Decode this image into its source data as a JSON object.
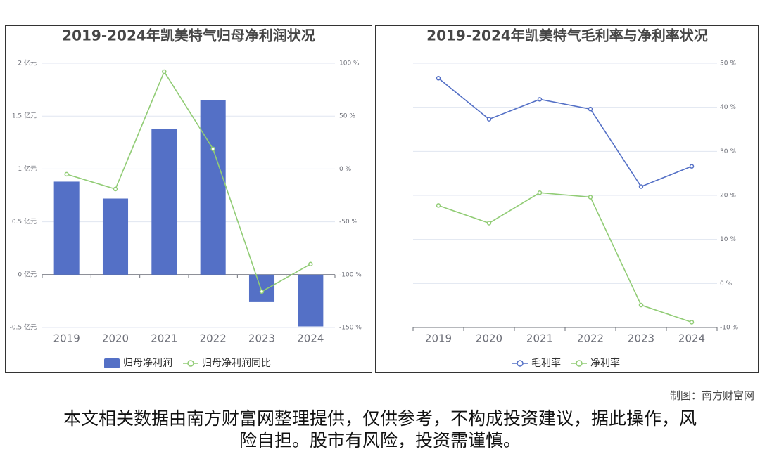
{
  "chart_data": [
    {
      "type": "bar_line",
      "title": "2019-2024年凯美特气归母净利润状况",
      "categories": [
        "2019",
        "2020",
        "2021",
        "2022",
        "2023",
        "2024"
      ],
      "series": [
        {
          "name": "归母净利润",
          "type": "bar",
          "color": "#5470c6",
          "values": [
            0.88,
            0.72,
            1.38,
            1.65,
            -0.26,
            -0.49
          ]
        },
        {
          "name": "归母净利润同比",
          "type": "line",
          "axis": "y2",
          "color": "#91cc75",
          "values": [
            -5,
            -19,
            92,
            19,
            -116,
            -90
          ]
        }
      ],
      "ylim": [
        -0.5,
        2
      ],
      "yticks": [
        {
          "value": -0.5,
          "label": "-0.5 亿元"
        },
        {
          "value": 0,
          "label": "0 亿元"
        },
        {
          "value": 0.5,
          "label": "0.5 亿元"
        },
        {
          "value": 1,
          "label": "1 亿元"
        },
        {
          "value": 1.5,
          "label": "1.5 亿元"
        },
        {
          "value": 2,
          "label": "2 亿元"
        }
      ],
      "y2lim": [
        -150,
        100
      ],
      "y2ticks": [
        {
          "value": -150,
          "label": "-150 %"
        },
        {
          "value": -100,
          "label": "-100 %"
        },
        {
          "value": -50,
          "label": "-50 %"
        },
        {
          "value": 0,
          "label": "0 %"
        },
        {
          "value": 50,
          "label": "50 %"
        },
        {
          "value": 100,
          "label": "100 %"
        }
      ],
      "grid": true
    },
    {
      "type": "line",
      "title": "2019-2024年凯美特气毛利率与净利率状况",
      "categories": [
        "2019",
        "2020",
        "2021",
        "2022",
        "2023",
        "2024"
      ],
      "series": [
        {
          "name": "毛利率",
          "type": "line",
          "color": "#5470c6",
          "values": [
            46.6,
            37.3,
            41.8,
            39.6,
            22.0,
            26.6
          ]
        },
        {
          "name": "净利率",
          "type": "line",
          "color": "#91cc75",
          "values": [
            17.7,
            13.7,
            20.6,
            19.6,
            -4.9,
            -8.8
          ]
        }
      ],
      "ylim": [
        -10,
        50
      ],
      "yticks": [
        {
          "value": -10,
          "label": "-10 %"
        },
        {
          "value": 0,
          "label": "0 %"
        },
        {
          "value": 10,
          "label": "10 %"
        },
        {
          "value": 20,
          "label": "20 %"
        },
        {
          "value": 30,
          "label": "30 %"
        },
        {
          "value": 40,
          "label": "40 %"
        },
        {
          "value": 50,
          "label": "50 %"
        }
      ],
      "y_axis_side": "right",
      "grid": true
    }
  ],
  "footer": {
    "source": "制图：南方财富网",
    "disclaimer": "本文相关数据由南方财富网整理提供，仅供参考，不构成投资建议，据此操作，风险自担。股市有风险，投资需谨慎。"
  }
}
